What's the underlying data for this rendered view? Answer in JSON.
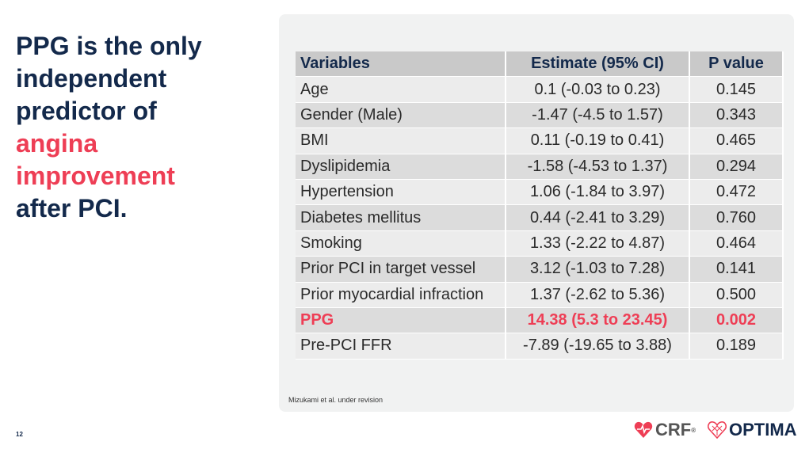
{
  "slide": {
    "title_line1": "PPG is the only",
    "title_line2": "independent",
    "title_line3": "predictor of",
    "title_accent1": "angina",
    "title_accent2": "improvement",
    "title_line4": "after PCI.",
    "page_number": "12",
    "citation": "Mizukami et al. under revision"
  },
  "table": {
    "headers": [
      "Variables",
      "Estimate (95% CI)",
      "P value"
    ],
    "rows": [
      [
        "Age",
        "0.1 (-0.03 to 0.23)",
        "0.145"
      ],
      [
        "Gender (Male)",
        "-1.47 (-4.5 to 1.57)",
        "0.343"
      ],
      [
        "BMI",
        "0.11 (-0.19 to 0.41)",
        "0.465"
      ],
      [
        "Dyslipidemia",
        "-1.58 (-4.53 to 1.37)",
        "0.294"
      ],
      [
        "Hypertension",
        "1.06 (-1.84 to 3.97)",
        "0.472"
      ],
      [
        "Diabetes mellitus",
        "0.44 (-2.41 to 3.29)",
        "0.760"
      ],
      [
        "Smoking",
        "1.33 (-2.22 to 4.87)",
        "0.464"
      ],
      [
        "Prior PCI in target vessel",
        "3.12 (-1.03 to 7.28)",
        "0.141"
      ],
      [
        "Prior myocardial infraction",
        "1.37 (-2.62 to 5.36)",
        "0.500"
      ],
      [
        "PPG",
        "14.38 (5.3 to 23.45)",
        "0.002"
      ],
      [
        "Pre-PCI FFR",
        "-7.89 (-19.65 to 3.88)",
        "0.189"
      ]
    ]
  },
  "logos": {
    "crf_text": "CRF",
    "crf_mark": "®",
    "optima_text": "OPTIMA"
  },
  "colors": {
    "navy": "#13294b",
    "accent": "#ee3e55"
  }
}
